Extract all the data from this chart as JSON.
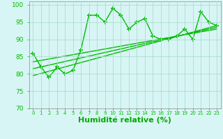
{
  "x": [
    0,
    1,
    2,
    3,
    4,
    5,
    6,
    7,
    8,
    9,
    10,
    11,
    12,
    13,
    14,
    15,
    16,
    17,
    18,
    19,
    20,
    21,
    22,
    23
  ],
  "y_main": [
    86,
    82,
    79,
    82,
    80,
    81,
    87,
    97,
    97,
    95,
    99,
    97,
    93,
    95,
    96,
    91,
    90,
    90,
    91,
    93,
    90,
    98,
    95,
    94
  ],
  "regression_lines": [
    {
      "x0": 0,
      "y0": 79.5,
      "x1": 23,
      "y1": 94.0
    },
    {
      "x0": 0,
      "y0": 81.5,
      "x1": 23,
      "y1": 93.5
    },
    {
      "x0": 0,
      "y0": 83.5,
      "x1": 23,
      "y1": 93.0
    }
  ],
  "line_color": "#00bb00",
  "bg_color": "#d8f5f5",
  "grid_color": "#aaddcc",
  "xlabel": "Humidité relative (%)",
  "xlabel_color": "#00aa00",
  "xlabel_fontsize": 8,
  "ylim": [
    70,
    101
  ],
  "xlim": [
    -0.5,
    23.5
  ],
  "yticks": [
    70,
    75,
    80,
    85,
    90,
    95,
    100
  ],
  "marker": "P",
  "marker_size": 3,
  "linewidth": 1.0
}
